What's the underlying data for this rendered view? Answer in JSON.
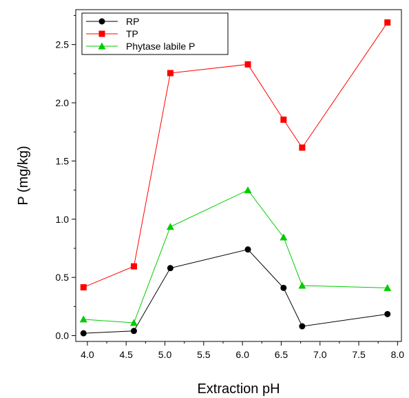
{
  "chart_data": {
    "type": "line",
    "title": "",
    "xlabel": "Extraction pH",
    "ylabel": "P (mg/kg)",
    "xlim": [
      3.85,
      8.05
    ],
    "ylim": [
      -0.05,
      2.8
    ],
    "xticks": [
      "4.0",
      "4.5",
      "5.0",
      "5.5",
      "6.0",
      "6.5",
      "7.0",
      "7.5",
      "8.0"
    ],
    "yticks": [
      "0.0",
      "0.5",
      "1.0",
      "1.5",
      "2.0",
      "2.5"
    ],
    "grid": false,
    "legend_position": "top-left",
    "x": [
      3.95,
      4.6,
      5.07,
      6.07,
      6.53,
      6.77,
      7.87
    ],
    "series": [
      {
        "name": "RP",
        "marker": "circle",
        "color": "#000000",
        "values": [
          0.02,
          0.04,
          0.58,
          0.74,
          0.41,
          0.08,
          0.185
        ]
      },
      {
        "name": "TP",
        "marker": "square",
        "color": "#ff0000",
        "values": [
          0.415,
          0.595,
          2.255,
          2.33,
          1.855,
          1.615,
          2.69
        ]
      },
      {
        "name": "Phytase labile P",
        "marker": "triangle",
        "color": "#00cc00",
        "values": [
          0.14,
          0.11,
          0.935,
          1.25,
          0.845,
          0.43,
          0.41
        ]
      }
    ]
  }
}
